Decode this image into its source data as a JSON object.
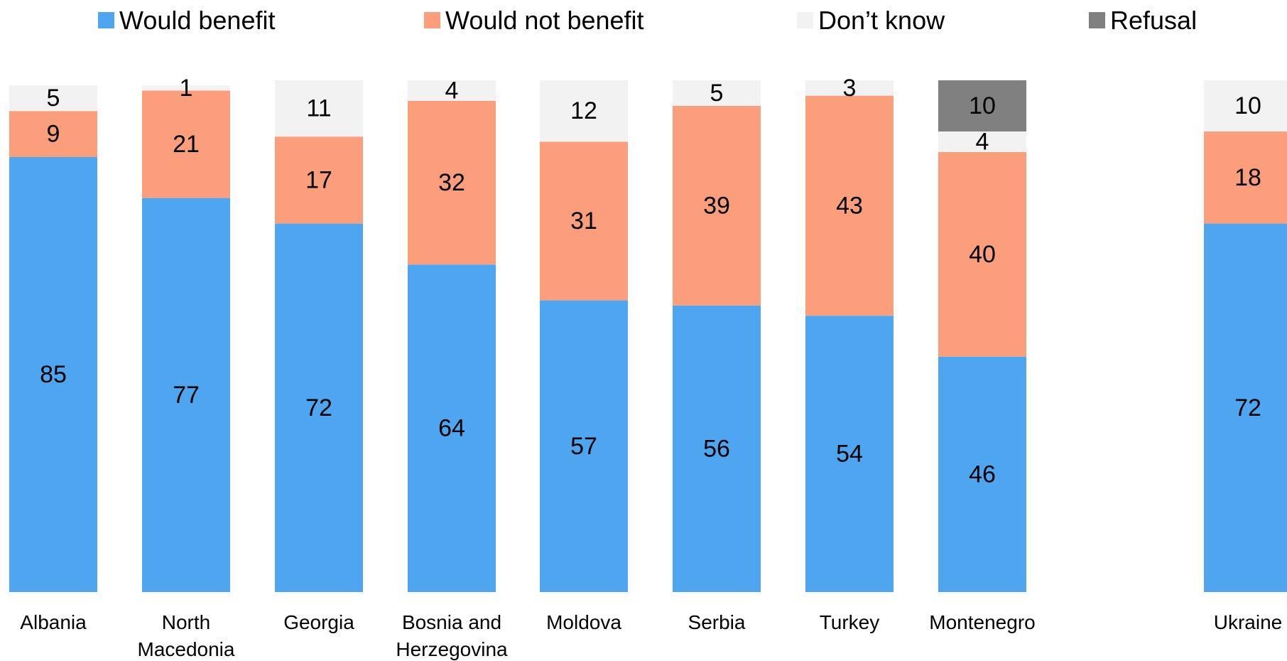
{
  "chart_data": {
    "type": "bar",
    "stacked": true,
    "orientation": "vertical",
    "legend_position": "top",
    "grid": false,
    "title": "",
    "xlabel": "",
    "ylabel": "",
    "ylim": [
      0,
      100
    ],
    "categories": [
      "Albania",
      "North Macedonia",
      "Georgia",
      "Bosnia and Herzegovina",
      "Moldova",
      "Serbia",
      "Turkey",
      "Montenegro",
      "Ukraine"
    ],
    "category_lines": [
      [
        "Albania"
      ],
      [
        "North",
        "Macedonia"
      ],
      [
        "Georgia"
      ],
      [
        "Bosnia and",
        "Herzegovina"
      ],
      [
        "Moldova"
      ],
      [
        "Serbia"
      ],
      [
        "Turkey"
      ],
      [
        "Montenegro"
      ],
      [
        "Ukraine"
      ]
    ],
    "series": [
      {
        "name": "Would benefit",
        "color": "#4EA6F0",
        "values": [
          85,
          77,
          72,
          64,
          57,
          56,
          54,
          46,
          72
        ]
      },
      {
        "name": "Would not benefit",
        "color": "#FA9E7C",
        "values": [
          9,
          21,
          17,
          32,
          31,
          39,
          43,
          40,
          18
        ]
      },
      {
        "name": "Don’t know",
        "color": "#F2F2F2",
        "values": [
          5,
          1,
          11,
          4,
          12,
          5,
          3,
          4,
          10
        ]
      },
      {
        "name": "Refusal",
        "color": "#808080",
        "values": [
          null,
          null,
          null,
          null,
          null,
          null,
          null,
          10,
          null
        ]
      }
    ]
  }
}
